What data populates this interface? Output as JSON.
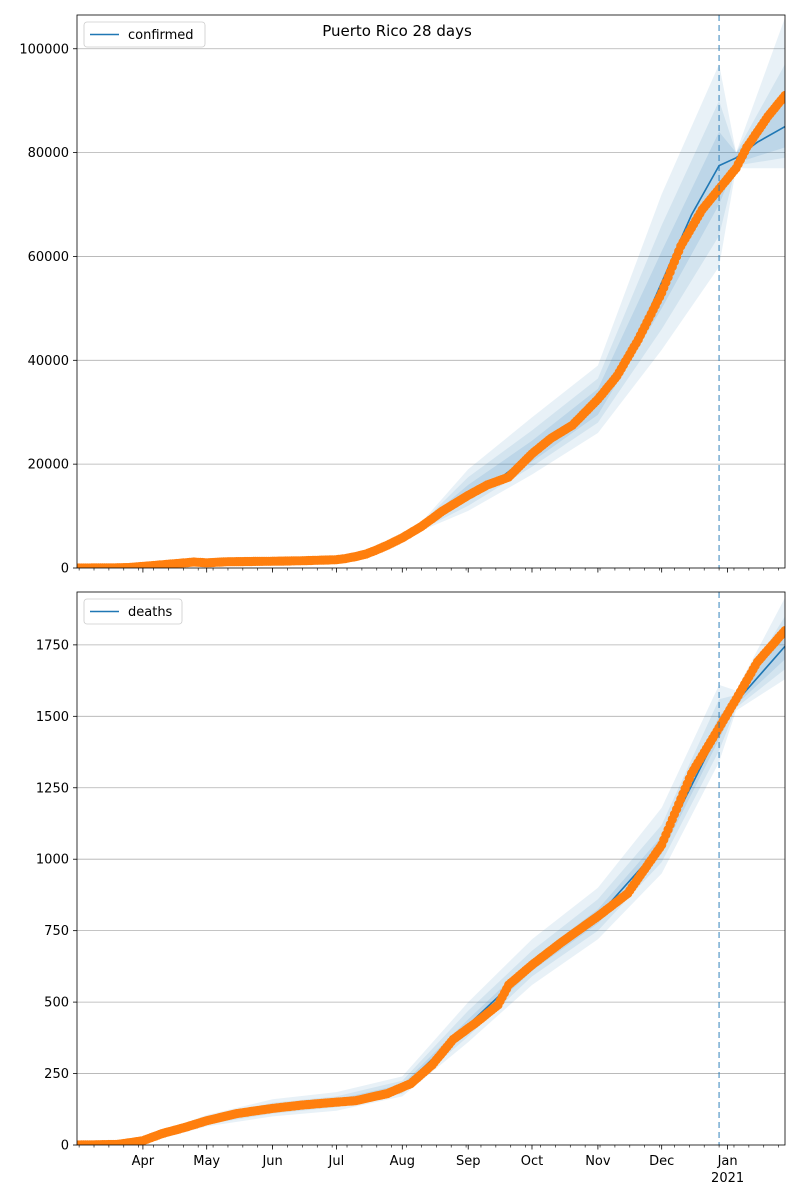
{
  "chart_data": [
    {
      "type": "line",
      "title": "Puerto Rico 28 days",
      "legend": {
        "label": "confirmed",
        "placement": "top-left"
      },
      "ylim": [
        0,
        106500
      ],
      "yticks": [
        0,
        20000,
        40000,
        60000,
        80000,
        100000
      ],
      "ytick_labels": [
        "0",
        "20000",
        "40000",
        "60000",
        "80000",
        "100000"
      ],
      "grid": "horizontal",
      "observed_color": "#ff7f0e",
      "model_color": "#1f77b4",
      "band_color": "#1f77b4",
      "forecast_start": "2020-12-28",
      "observed": [
        [
          "2020-03-01",
          0
        ],
        [
          "2020-03-15",
          20
        ],
        [
          "2020-03-25",
          80
        ],
        [
          "2020-04-05",
          450
        ],
        [
          "2020-04-15",
          800
        ],
        [
          "2020-04-25",
          1150
        ],
        [
          "2020-05-01",
          1000
        ],
        [
          "2020-05-10",
          1200
        ],
        [
          "2020-05-20",
          1250
        ],
        [
          "2020-06-01",
          1300
        ],
        [
          "2020-06-15",
          1400
        ],
        [
          "2020-07-01",
          1600
        ],
        [
          "2020-07-05",
          1800
        ],
        [
          "2020-07-10",
          2200
        ],
        [
          "2020-07-15",
          2700
        ],
        [
          "2020-07-20",
          3500
        ],
        [
          "2020-07-25",
          4400
        ],
        [
          "2020-08-01",
          5800
        ],
        [
          "2020-08-10",
          8000
        ],
        [
          "2020-08-20",
          11000
        ],
        [
          "2020-09-01",
          14000
        ],
        [
          "2020-09-10",
          16000
        ],
        [
          "2020-09-20",
          17500
        ],
        [
          "2020-10-01",
          22000
        ],
        [
          "2020-10-10",
          25000
        ],
        [
          "2020-10-20",
          27500
        ],
        [
          "2020-11-01",
          32500
        ],
        [
          "2020-11-10",
          37000
        ],
        [
          "2020-11-20",
          44000
        ],
        [
          "2020-12-01",
          53000
        ],
        [
          "2020-12-10",
          62000
        ],
        [
          "2020-12-20",
          69000
        ],
        [
          "2020-12-28",
          73000
        ],
        [
          "2021-01-05",
          77000
        ],
        [
          "2021-01-10",
          81000
        ],
        [
          "2021-01-20",
          87000
        ],
        [
          "2021-01-28",
          91000
        ]
      ],
      "model": [
        [
          "2020-08-25",
          13000
        ],
        [
          "2020-09-01",
          14500
        ],
        [
          "2020-09-15",
          17000
        ],
        [
          "2020-10-01",
          22000
        ],
        [
          "2020-10-15",
          26000
        ],
        [
          "2020-11-01",
          32000
        ],
        [
          "2020-11-15",
          40000
        ],
        [
          "2020-12-01",
          55000
        ],
        [
          "2020-12-15",
          68000
        ],
        [
          "2020-12-28",
          77500
        ],
        [
          "2021-01-05",
          79000
        ],
        [
          "2021-01-15",
          82000
        ],
        [
          "2021-01-28",
          85000
        ]
      ],
      "bands": [
        {
          "opacity": 0.1,
          "points": [
            [
              "2020-08-10",
              7200,
              8800
            ],
            [
              "2020-09-01",
              11000,
              19000
            ],
            [
              "2020-10-01",
              18000,
              29000
            ],
            [
              "2020-11-01",
              26000,
              39000
            ],
            [
              "2020-12-01",
              42000,
              72000
            ],
            [
              "2020-12-28",
              58000,
              97000
            ],
            [
              "2021-01-05",
              77000,
              80000
            ],
            [
              "2021-01-28",
              77000,
              106000
            ]
          ]
        },
        {
          "opacity": 0.1,
          "points": [
            [
              "2020-08-10",
              7400,
              8600
            ],
            [
              "2020-09-01",
              12000,
              17500
            ],
            [
              "2020-10-01",
              19500,
              26500
            ],
            [
              "2020-11-01",
              28000,
              36500
            ],
            [
              "2020-12-01",
              46000,
              66000
            ],
            [
              "2020-12-28",
              64000,
              90000
            ],
            [
              "2021-01-05",
              77500,
              80000
            ],
            [
              "2021-01-28",
              79000,
              97000
            ]
          ]
        },
        {
          "opacity": 0.12,
          "points": [
            [
              "2020-08-10",
              7600,
              8400
            ],
            [
              "2020-09-01",
              13200,
              16000
            ],
            [
              "2020-10-01",
              20500,
              24500
            ],
            [
              "2020-11-01",
              29500,
              34500
            ],
            [
              "2020-12-01",
              50000,
              61000
            ],
            [
              "2020-12-28",
              70000,
              84000
            ],
            [
              "2021-01-05",
              78000,
              80000
            ],
            [
              "2021-01-28",
              81000,
              91000
            ]
          ]
        }
      ]
    },
    {
      "type": "line",
      "title": "",
      "legend": {
        "label": "deaths",
        "placement": "top-left"
      },
      "ylim": [
        0,
        1935
      ],
      "yticks": [
        0,
        250,
        500,
        750,
        1000,
        1250,
        1500,
        1750
      ],
      "ytick_labels": [
        "0",
        "250",
        "500",
        "750",
        "1000",
        "1250",
        "1500",
        "1750"
      ],
      "grid": "horizontal",
      "observed_color": "#ff7f0e",
      "model_color": "#1f77b4",
      "band_color": "#1f77b4",
      "forecast_start": "2020-12-28",
      "observed": [
        [
          "2020-03-01",
          0
        ],
        [
          "2020-03-20",
          2
        ],
        [
          "2020-04-01",
          15
        ],
        [
          "2020-04-10",
          40
        ],
        [
          "2020-04-20",
          60
        ],
        [
          "2020-05-01",
          85
        ],
        [
          "2020-05-15",
          110
        ],
        [
          "2020-06-01",
          128
        ],
        [
          "2020-06-15",
          140
        ],
        [
          "2020-07-01",
          150
        ],
        [
          "2020-07-10",
          155
        ],
        [
          "2020-07-25",
          180
        ],
        [
          "2020-08-05",
          215
        ],
        [
          "2020-08-15",
          280
        ],
        [
          "2020-08-25",
          370
        ],
        [
          "2020-09-05",
          430
        ],
        [
          "2020-09-15",
          490
        ],
        [
          "2020-09-20",
          560
        ],
        [
          "2020-10-01",
          630
        ],
        [
          "2020-10-15",
          710
        ],
        [
          "2020-11-01",
          800
        ],
        [
          "2020-11-15",
          880
        ],
        [
          "2020-12-01",
          1050
        ],
        [
          "2020-12-15",
          1300
        ],
        [
          "2020-12-28",
          1460
        ],
        [
          "2021-01-05",
          1560
        ],
        [
          "2021-01-15",
          1690
        ],
        [
          "2021-01-28",
          1800
        ]
      ],
      "model": [
        [
          "2020-03-01",
          0
        ],
        [
          "2020-04-01",
          15
        ],
        [
          "2020-05-01",
          85
        ],
        [
          "2020-06-01",
          128
        ],
        [
          "2020-07-01",
          150
        ],
        [
          "2020-08-01",
          200
        ],
        [
          "2020-09-01",
          420
        ],
        [
          "2020-10-01",
          630
        ],
        [
          "2020-11-01",
          800
        ],
        [
          "2020-12-01",
          1050
        ],
        [
          "2020-12-28",
          1450
        ],
        [
          "2021-01-05",
          1550
        ],
        [
          "2021-01-28",
          1745
        ]
      ],
      "bands": [
        {
          "opacity": 0.1,
          "points": [
            [
              "2020-03-01",
              0,
              0
            ],
            [
              "2020-04-01",
              5,
              25
            ],
            [
              "2020-05-01",
              65,
              105
            ],
            [
              "2020-06-01",
              100,
              160
            ],
            [
              "2020-07-01",
              120,
              185
            ],
            [
              "2020-08-01",
              170,
              240
            ],
            [
              "2020-09-01",
              360,
              500
            ],
            [
              "2020-10-01",
              560,
              720
            ],
            [
              "2020-11-01",
              720,
              900
            ],
            [
              "2020-12-01",
              950,
              1180
            ],
            [
              "2020-12-28",
              1340,
              1610
            ],
            [
              "2021-01-05",
              1520,
              1590
            ],
            [
              "2021-01-28",
              1630,
              1915
            ]
          ]
        },
        {
          "opacity": 0.1,
          "points": [
            [
              "2020-03-01",
              0,
              0
            ],
            [
              "2020-04-01",
              8,
              22
            ],
            [
              "2020-05-01",
              72,
              98
            ],
            [
              "2020-06-01",
              110,
              148
            ],
            [
              "2020-07-01",
              132,
              170
            ],
            [
              "2020-08-01",
              180,
              225
            ],
            [
              "2020-09-01",
              380,
              470
            ],
            [
              "2020-10-01",
              590,
              680
            ],
            [
              "2020-11-01",
              750,
              860
            ],
            [
              "2020-12-01",
              990,
              1120
            ],
            [
              "2020-12-28",
              1380,
              1560
            ],
            [
              "2021-01-05",
              1530,
              1575
            ],
            [
              "2021-01-28",
              1665,
              1850
            ]
          ]
        },
        {
          "opacity": 0.12,
          "points": [
            [
              "2020-03-01",
              0,
              0
            ],
            [
              "2020-04-01",
              11,
              19
            ],
            [
              "2020-05-01",
              78,
              92
            ],
            [
              "2020-06-01",
              118,
              138
            ],
            [
              "2020-07-01",
              141,
              160
            ],
            [
              "2020-08-01",
              190,
              212
            ],
            [
              "2020-09-01",
              400,
              440
            ],
            [
              "2020-10-01",
              610,
              650
            ],
            [
              "2020-11-01",
              775,
              825
            ],
            [
              "2020-12-01",
              1020,
              1080
            ],
            [
              "2020-12-28",
              1420,
              1500
            ],
            [
              "2021-01-05",
              1540,
              1565
            ],
            [
              "2021-01-28",
              1700,
              1790
            ]
          ]
        }
      ]
    }
  ],
  "x_axis": {
    "start": "2020-03-01",
    "end": "2021-01-28",
    "major_ticks": [
      {
        "date": "2020-04-01",
        "label": "Apr"
      },
      {
        "date": "2020-05-01",
        "label": "May"
      },
      {
        "date": "2020-06-01",
        "label": "Jun"
      },
      {
        "date": "2020-07-01",
        "label": "Jul"
      },
      {
        "date": "2020-08-01",
        "label": "Aug"
      },
      {
        "date": "2020-09-01",
        "label": "Sep"
      },
      {
        "date": "2020-10-01",
        "label": "Oct"
      },
      {
        "date": "2020-11-01",
        "label": "Nov"
      },
      {
        "date": "2020-12-01",
        "label": "Dec"
      },
      {
        "date": "2021-01-01",
        "label": "Jan"
      }
    ],
    "year_label": "2021"
  }
}
